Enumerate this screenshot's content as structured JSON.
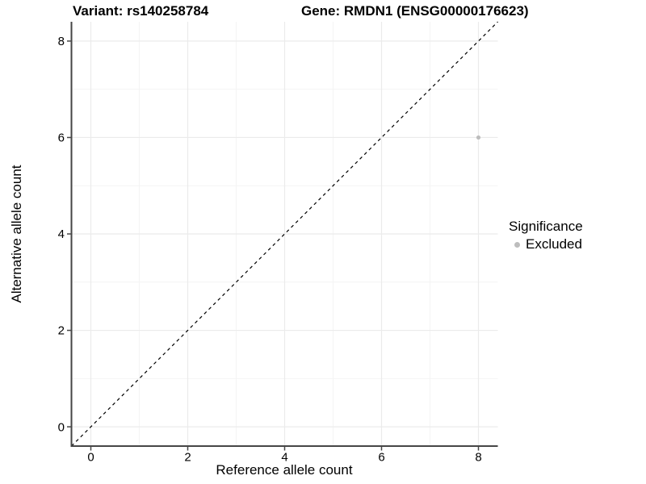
{
  "chart_data": {
    "type": "scatter",
    "titles": [
      "Variant: rs140258784",
      "Gene: RMDN1 (ENSG00000176623)"
    ],
    "xlabel": "Reference allele count",
    "ylabel": "Alternative allele count",
    "xlim": [
      -0.4,
      8.4
    ],
    "ylim": [
      -0.4,
      8.4
    ],
    "x_ticks": [
      0,
      2,
      4,
      6,
      8
    ],
    "y_ticks": [
      0,
      2,
      4,
      6,
      8
    ],
    "x_minor": [
      1,
      3,
      5,
      7
    ],
    "y_minor": [
      1,
      3,
      5,
      7
    ],
    "grid": "on",
    "series": [
      {
        "name": "Excluded",
        "color": "#bdbdbd",
        "points": [
          {
            "x": 8,
            "y": 6
          }
        ]
      }
    ],
    "reference_line": {
      "kind": "identity",
      "from": [
        -0.4,
        -0.4
      ],
      "to": [
        8.4,
        8.4
      ],
      "style": "dashed",
      "color": "#000000"
    },
    "legend": {
      "title": "Significance",
      "position": "right",
      "items": [
        {
          "label": "Excluded",
          "color": "#bdbdbd"
        }
      ]
    }
  },
  "colors": {
    "background": "#ffffff",
    "grid_major": "#ebebeb",
    "grid_minor": "#f4f4f4",
    "axis_line": "#464646",
    "text": "#000000",
    "point": "#bdbdbd"
  }
}
